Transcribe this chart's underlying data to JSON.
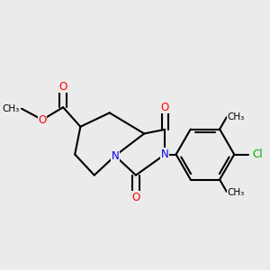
{
  "background_color": "#ebebeb",
  "fig_size": [
    3.0,
    3.0
  ],
  "dpi": 100,
  "bond_color": "#000000",
  "bond_width": 1.5,
  "atom_colors": {
    "O": "#ff0000",
    "N": "#0000ee",
    "Cl": "#00aa00",
    "C": "#000000"
  },
  "font_size": 8.5,
  "xlim": [
    -1.5,
    2.2
  ],
  "ylim": [
    -0.9,
    1.5
  ]
}
